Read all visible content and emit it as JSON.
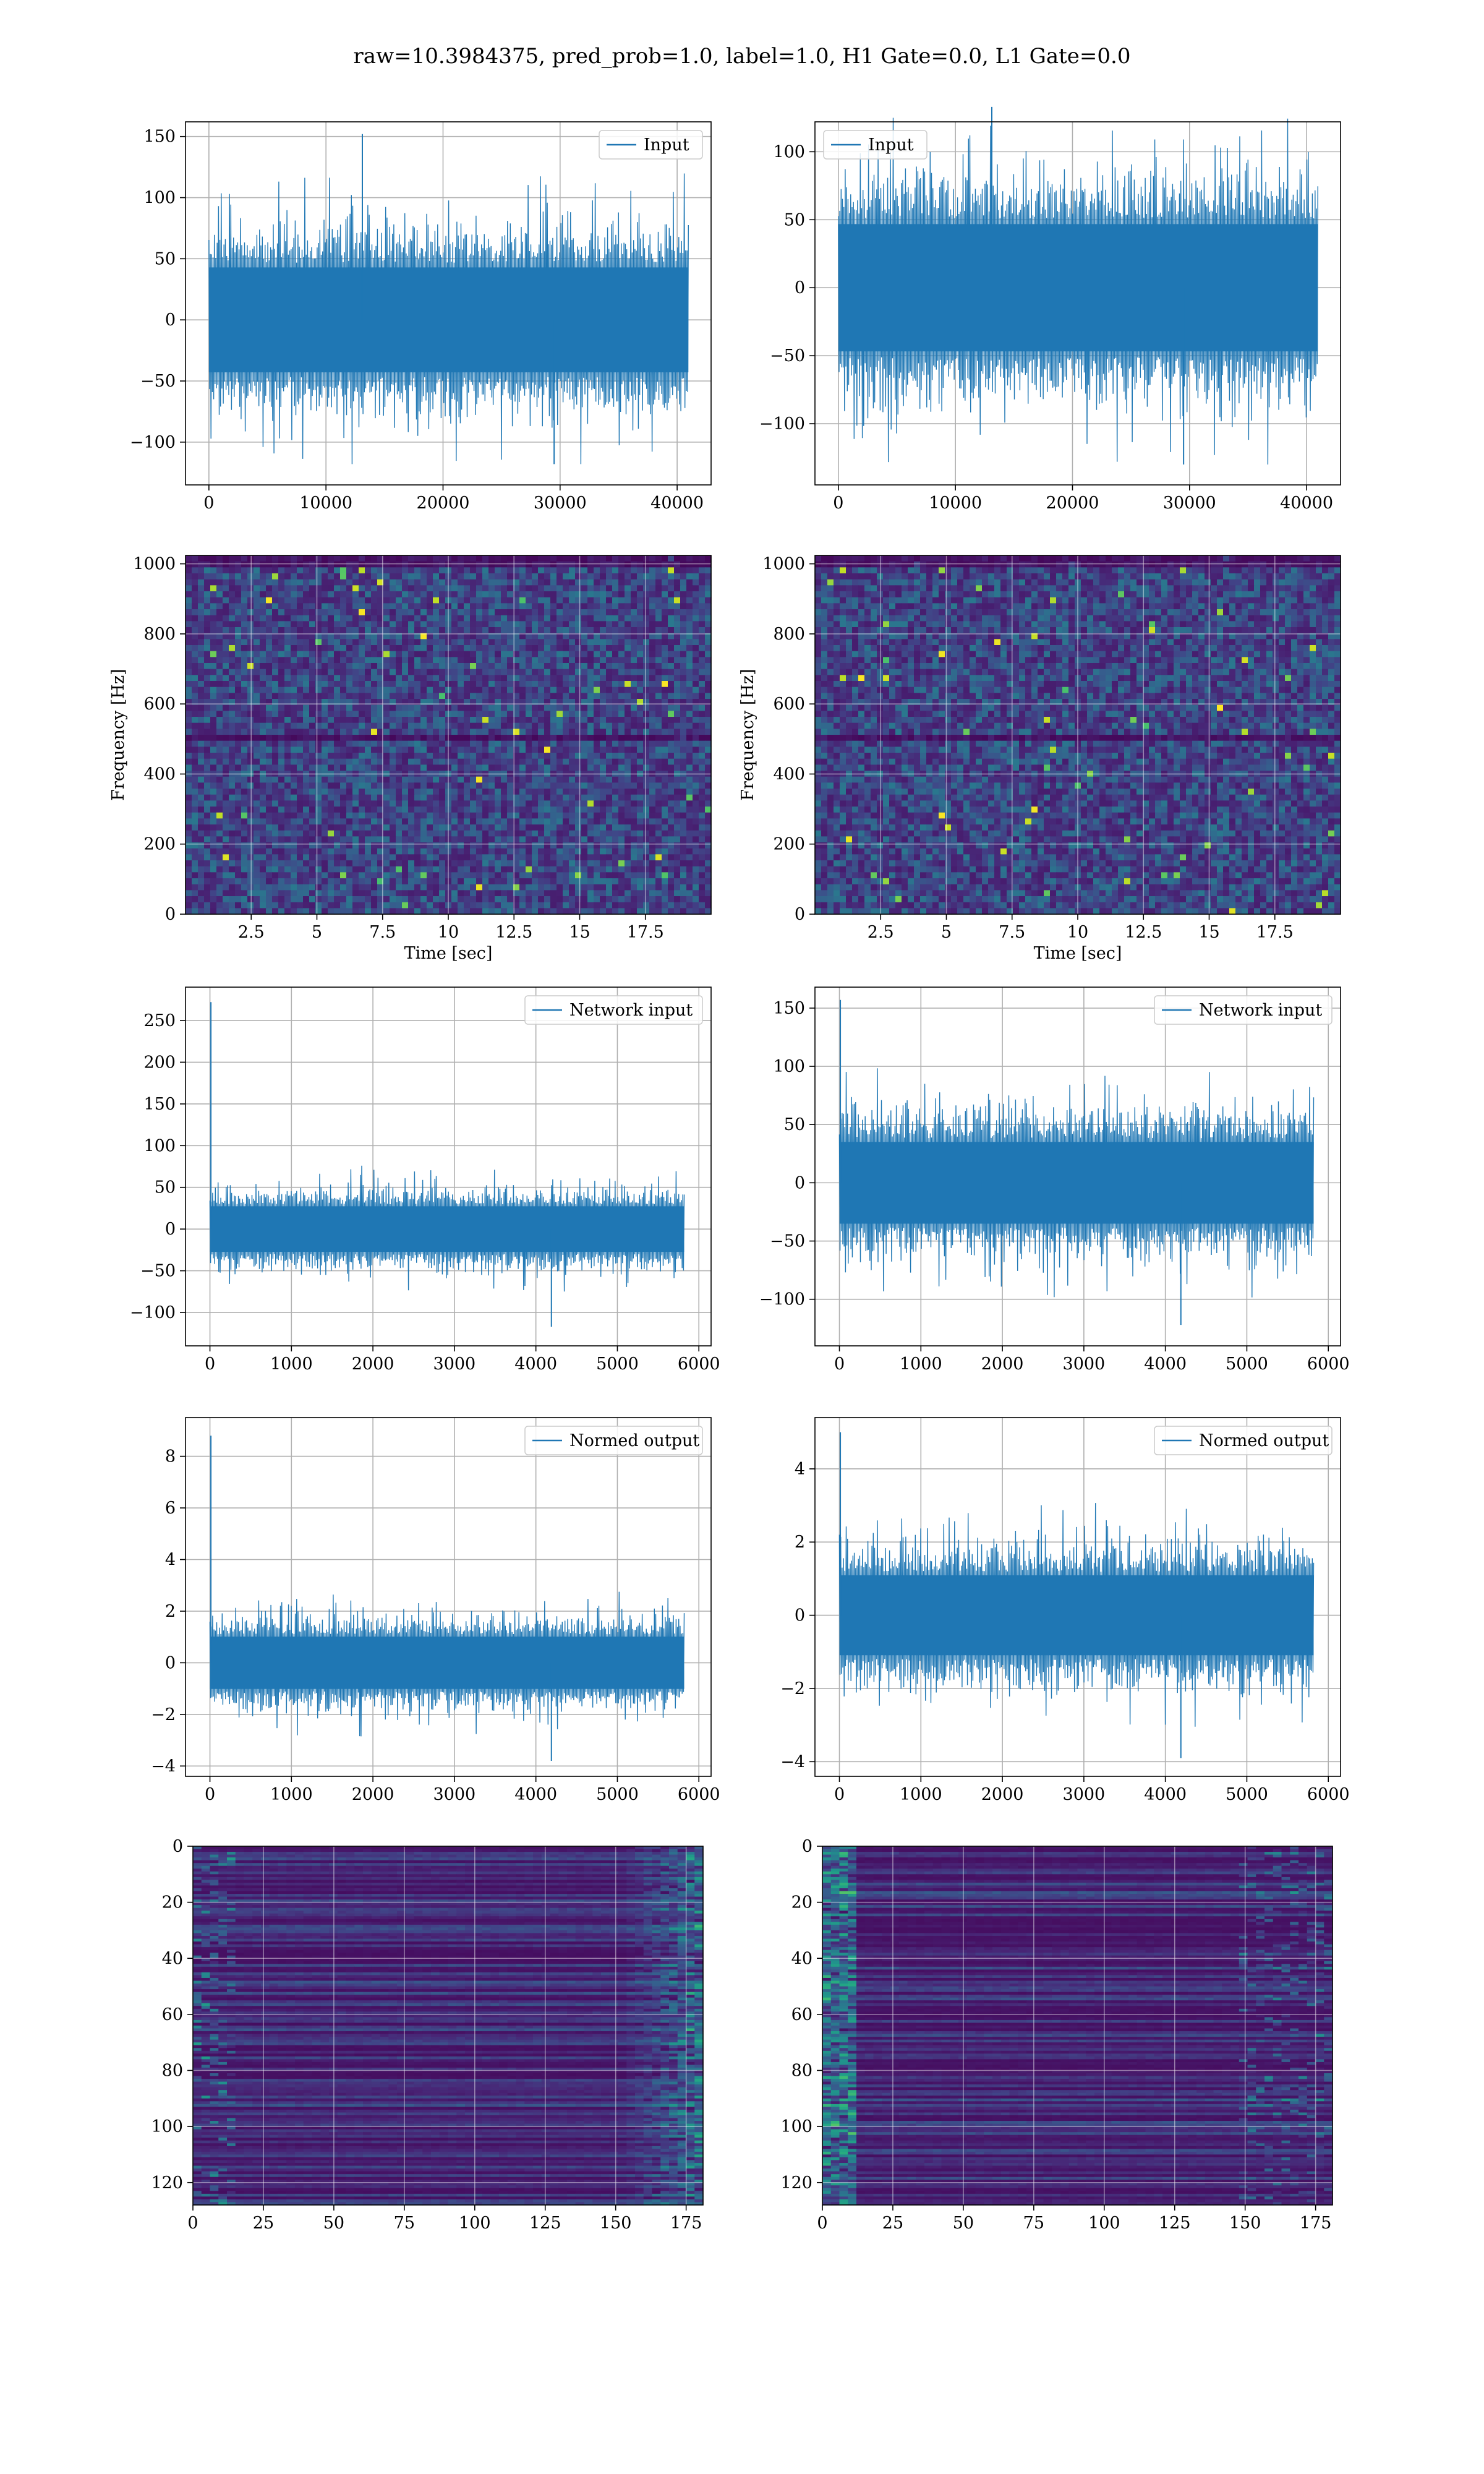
{
  "suptitle": "raw=10.3984375, pred_prob=1.0, label=1.0, H1 Gate=0.0, L1 Gate=0.0",
  "colors": {
    "line": "#1f77b4",
    "grid": "#b0b0b0",
    "viridis_low": "#440154",
    "viridis_mid": "#21918c",
    "viridis_high": "#fde725"
  },
  "chart_data": [
    {
      "id": "h1-input",
      "type": "line",
      "legend": "Input",
      "legend_position": "upper right",
      "xlim": [
        -2000,
        42900
      ],
      "ylim": [
        -135,
        162
      ],
      "xticks": [
        0,
        10000,
        20000,
        30000,
        40000
      ],
      "yticks": [
        -100,
        -50,
        0,
        50,
        100,
        150
      ],
      "signal": {
        "x_start": 0,
        "x_end": 40960,
        "core_amplitude": 55,
        "peak_max": 152,
        "peak_min": -118
      },
      "grid": true
    },
    {
      "id": "l1-input",
      "type": "line",
      "legend": "Input",
      "legend_position": "upper left",
      "xlim": [
        -2000,
        42900
      ],
      "ylim": [
        -145,
        122
      ],
      "xticks": [
        0,
        10000,
        20000,
        30000,
        40000
      ],
      "yticks": [
        -100,
        -50,
        0,
        50,
        100
      ],
      "signal": {
        "x_start": 0,
        "x_end": 40960,
        "core_amplitude": 60,
        "peak_max": 133,
        "peak_min": -130
      },
      "grid": true
    },
    {
      "id": "h1-spectrogram",
      "type": "heatmap",
      "xlabel": "Time [sec]",
      "ylabel": "Frequency [Hz]",
      "xlim": [
        0,
        20
      ],
      "ylim": [
        0,
        1024
      ],
      "xticks": [
        2.5,
        5.0,
        7.5,
        10.0,
        12.5,
        15.0,
        17.5
      ],
      "yticks": [
        0,
        200,
        400,
        600,
        800,
        1000
      ],
      "colormap": "viridis",
      "grid": true
    },
    {
      "id": "l1-spectrogram",
      "type": "heatmap",
      "xlabel": "Time [sec]",
      "ylabel": "Frequency [Hz]",
      "xlim": [
        0,
        20
      ],
      "ylim": [
        0,
        1024
      ],
      "xticks": [
        2.5,
        5.0,
        7.5,
        10.0,
        12.5,
        15.0,
        17.5
      ],
      "yticks": [
        0,
        200,
        400,
        600,
        800,
        1000
      ],
      "colormap": "viridis",
      "grid": true
    },
    {
      "id": "h1-network-input",
      "type": "line",
      "legend": "Network input",
      "legend_position": "upper right",
      "xlim": [
        -300,
        6150
      ],
      "ylim": [
        -140,
        290
      ],
      "xticks": [
        0,
        1000,
        2000,
        3000,
        4000,
        5000,
        6000
      ],
      "yticks": [
        -100,
        -50,
        0,
        50,
        100,
        150,
        200,
        250
      ],
      "signal": {
        "x_start": 0,
        "x_end": 5820,
        "core_amplitude": 35,
        "peak_max": 272,
        "peak_min": -117
      },
      "grid": true
    },
    {
      "id": "l1-network-input",
      "type": "line",
      "legend": "Network input",
      "legend_position": "upper right",
      "xlim": [
        -300,
        6150
      ],
      "ylim": [
        -140,
        168
      ],
      "xticks": [
        0,
        1000,
        2000,
        3000,
        4000,
        5000,
        6000
      ],
      "yticks": [
        -100,
        -50,
        0,
        50,
        100,
        150
      ],
      "signal": {
        "x_start": 0,
        "x_end": 5820,
        "core_amplitude": 45,
        "peak_max": 157,
        "peak_min": -122
      },
      "grid": true
    },
    {
      "id": "h1-normed-output",
      "type": "line",
      "legend": "Normed output",
      "legend_position": "upper right",
      "xlim": [
        -300,
        6150
      ],
      "ylim": [
        -4.4,
        9.5
      ],
      "xticks": [
        0,
        1000,
        2000,
        3000,
        4000,
        5000,
        6000
      ],
      "yticks": [
        -4,
        -2,
        0,
        2,
        4,
        6,
        8
      ],
      "signal": {
        "x_start": 0,
        "x_end": 5820,
        "core_amplitude": 1.3,
        "peak_max": 8.8,
        "peak_min": -3.8
      },
      "grid": true
    },
    {
      "id": "l1-normed-output",
      "type": "line",
      "legend": "Normed output",
      "legend_position": "upper right",
      "xlim": [
        -300,
        6150
      ],
      "ylim": [
        -4.4,
        5.4
      ],
      "xticks": [
        0,
        1000,
        2000,
        3000,
        4000,
        5000,
        6000
      ],
      "yticks": [
        -4,
        -2,
        0,
        2,
        4
      ],
      "signal": {
        "x_start": 0,
        "x_end": 5820,
        "core_amplitude": 1.4,
        "peak_max": 5.0,
        "peak_min": -3.9
      },
      "grid": true
    },
    {
      "id": "h1-feature-map",
      "type": "heatmap",
      "xlim": [
        0,
        181
      ],
      "ylim": [
        128,
        0
      ],
      "xticks": [
        0,
        25,
        50,
        75,
        100,
        125,
        150,
        175
      ],
      "yticks": [
        0,
        20,
        40,
        60,
        80,
        100,
        120
      ],
      "colormap": "viridis",
      "grid": true
    },
    {
      "id": "l1-feature-map",
      "type": "heatmap",
      "xlim": [
        0,
        181
      ],
      "ylim": [
        128,
        0
      ],
      "xticks": [
        0,
        25,
        50,
        75,
        100,
        125,
        150,
        175
      ],
      "yticks": [
        0,
        20,
        40,
        60,
        80,
        100,
        120
      ],
      "colormap": "viridis",
      "grid": true
    }
  ]
}
